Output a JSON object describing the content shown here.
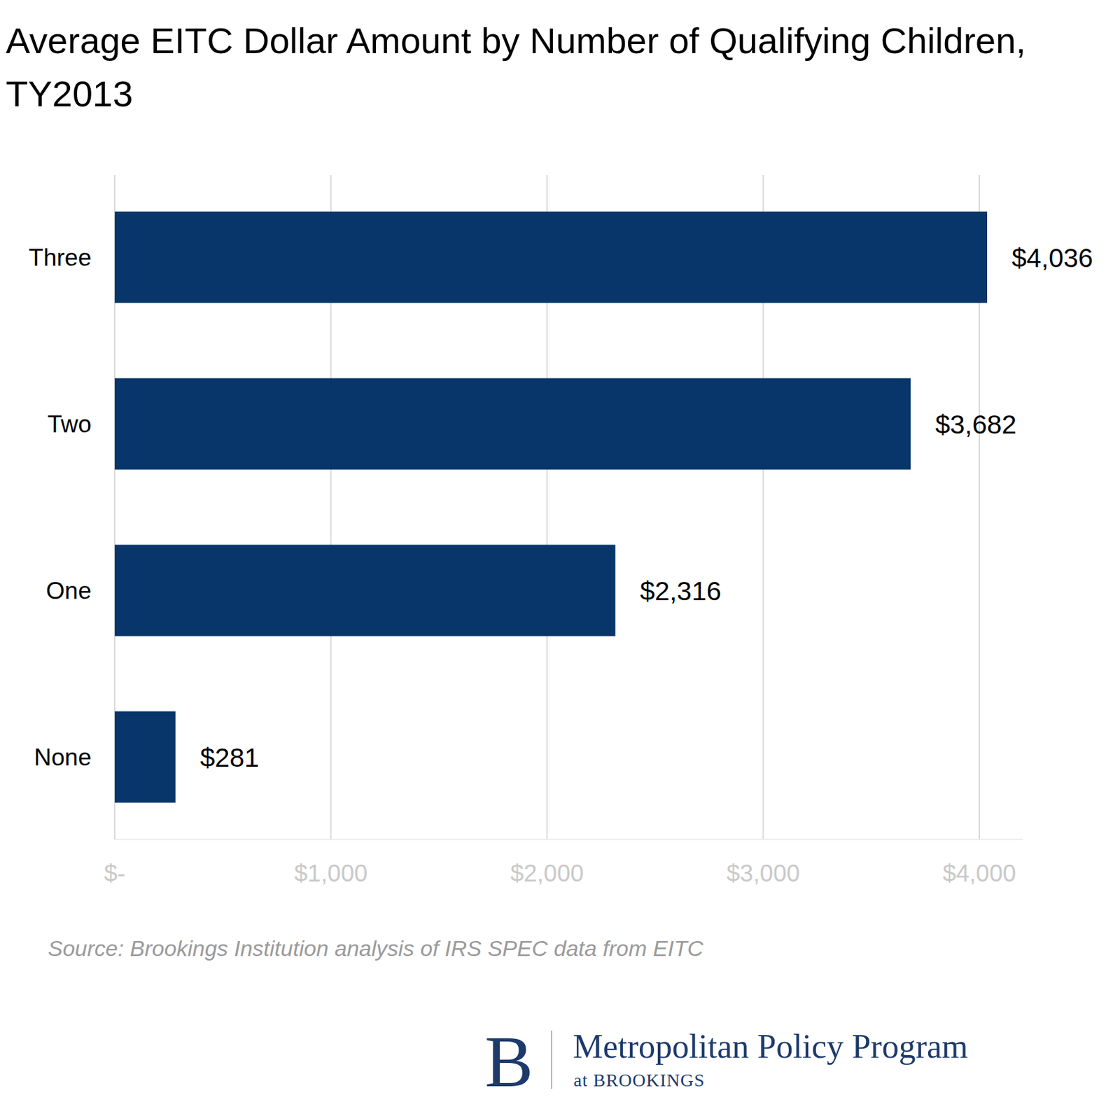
{
  "chart_data": {
    "type": "bar",
    "orientation": "horizontal",
    "title": "Average EITC Dollar Amount by Number of Qualifying Children, TY2013",
    "categories": [
      "Three",
      "Two",
      "One",
      "None"
    ],
    "values": [
      4036,
      3682,
      2316,
      281
    ],
    "value_labels": [
      "$4,036",
      "$3,682",
      "$2,316",
      "$281"
    ],
    "data_labels": true,
    "color": "#08366a",
    "xlim": [
      0,
      4200
    ],
    "xticks": [
      {
        "value": 0,
        "label": "$-"
      },
      {
        "value": 1000,
        "label": "$1,000"
      },
      {
        "value": 2000,
        "label": "$2,000"
      },
      {
        "value": 3000,
        "label": "$3,000"
      },
      {
        "value": 4000,
        "label": "$4,000"
      }
    ],
    "grid": true,
    "source": "Source: Brookings Institution analysis of IRS SPEC data from EITC",
    "logo": [
      "B",
      "Metropolitan Policy Program",
      "at BROOKINGS"
    ]
  }
}
